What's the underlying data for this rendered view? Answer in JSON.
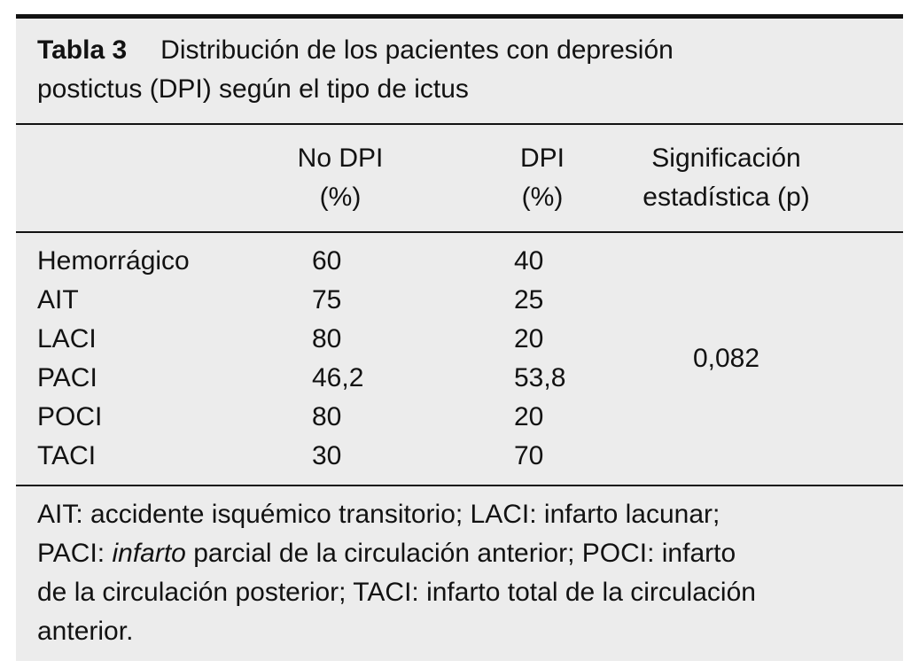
{
  "colors": {
    "panel_bg": "#ececec",
    "rule": "#121212",
    "text": "#121212"
  },
  "table": {
    "title": {
      "label": "Tabla 3",
      "line1": "Distribución de los pacientes con depresión",
      "line2": "postictus (DPI) según el tipo de ictus"
    },
    "headers": {
      "col1_line1": "No DPI",
      "col1_line2": "(%)",
      "col2_line1": "DPI",
      "col2_line2": "(%)",
      "col3_line1": "Significación",
      "col3_line2": "estadística (p)"
    },
    "rows": [
      {
        "label": "Hemorrágico",
        "no_dpi": "60",
        "dpi": "40"
      },
      {
        "label": "AIT",
        "no_dpi": "75",
        "dpi": "25"
      },
      {
        "label": "LACI",
        "no_dpi": "80",
        "dpi": "20"
      },
      {
        "label": "PACI",
        "no_dpi": "46,2",
        "dpi": "53,8"
      },
      {
        "label": "POCI",
        "no_dpi": "80",
        "dpi": "20"
      },
      {
        "label": "TACI",
        "no_dpi": "30",
        "dpi": "70"
      }
    ],
    "significance": "0,082",
    "footnote_lines": [
      [
        {
          "text": "AIT: accidente isquémico transitorio; LACI: infarto lacunar;",
          "italic": false
        }
      ],
      [
        {
          "text": "PACI: ",
          "italic": false
        },
        {
          "text": "infarto",
          "italic": true
        },
        {
          "text": " parcial de la circulación anterior; POCI: infarto",
          "italic": false
        }
      ],
      [
        {
          "text": "de la circulación posterior; TACI: infarto total de la circulación",
          "italic": false
        }
      ],
      [
        {
          "text": "anterior.",
          "italic": false
        }
      ]
    ]
  }
}
